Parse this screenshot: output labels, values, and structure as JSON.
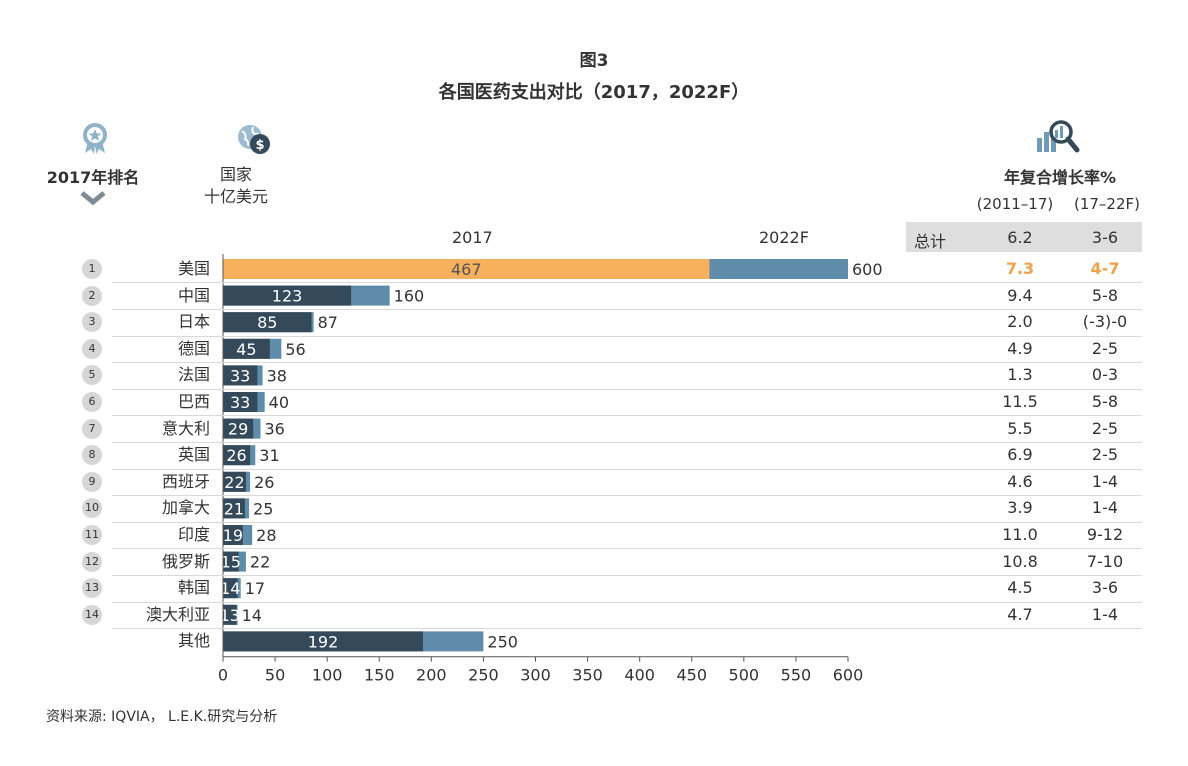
{
  "header": {
    "figure_label": "图3",
    "title": "各国医药支出对比（2017，2022F）",
    "rank_label": "2017年排名",
    "country_label_line1": "国家",
    "country_label_line2": "十亿美元",
    "cagr_label": "年复合增长率%",
    "period_a": "(2011–17)",
    "period_b": "(17–22F)",
    "total_label": "总计",
    "total_a": "6.2",
    "total_b": "3-6"
  },
  "source": "资料来源: IQVIA， L.E.K.研究与分析",
  "colors": {
    "highlight_2017": "#f6b05e",
    "bar_2017": "#34495a",
    "bar_2022": "#5f8ca8",
    "highlight_text": "#f0a24a"
  },
  "icons": {
    "rank": "award-ribbon-icon",
    "country": "globe-dollar-icon",
    "cagr": "bar-chart-magnifier-icon",
    "chevron": "chevron-down-icon"
  },
  "chart_data": {
    "type": "bar",
    "orientation": "horizontal",
    "title": "各国医药支出对比（2017，2022F）",
    "series": [
      {
        "name": "2017",
        "values": [
          467,
          123,
          85,
          45,
          33,
          33,
          29,
          26,
          22,
          21,
          19,
          15,
          14,
          13,
          192
        ]
      },
      {
        "name": "2022F",
        "values": [
          600,
          160,
          87,
          56,
          38,
          40,
          36,
          31,
          26,
          25,
          28,
          22,
          17,
          14,
          250
        ]
      }
    ],
    "categories": [
      "美国",
      "中国",
      "日本",
      "德国",
      "法国",
      "巴西",
      "意大利",
      "英国",
      "西班牙",
      "加拿大",
      "印度",
      "俄罗斯",
      "韩国",
      "澳大利亚",
      "其他"
    ],
    "ranks": [
      "1",
      "2",
      "3",
      "4",
      "5",
      "6",
      "7",
      "8",
      "9",
      "10",
      "11",
      "12",
      "13",
      "14",
      ""
    ],
    "cagr_2011_17": [
      "7.3",
      "9.4",
      "2.0",
      "4.9",
      "1.3",
      "11.5",
      "5.5",
      "6.9",
      "4.6",
      "3.9",
      "11.0",
      "10.8",
      "4.5",
      "4.7",
      ""
    ],
    "cagr_17_22F": [
      "4-7",
      "5-8",
      "(-3)-0",
      "2-5",
      "0-3",
      "5-8",
      "2-5",
      "2-5",
      "1-4",
      "1-4",
      "9-12",
      "7-10",
      "3-6",
      "1-4",
      ""
    ],
    "xlim": [
      0,
      600
    ],
    "xticks": [
      "0",
      "50",
      "100",
      "150",
      "200",
      "250",
      "300",
      "350",
      "400",
      "450",
      "500",
      "550",
      "600"
    ],
    "legend": "top"
  }
}
